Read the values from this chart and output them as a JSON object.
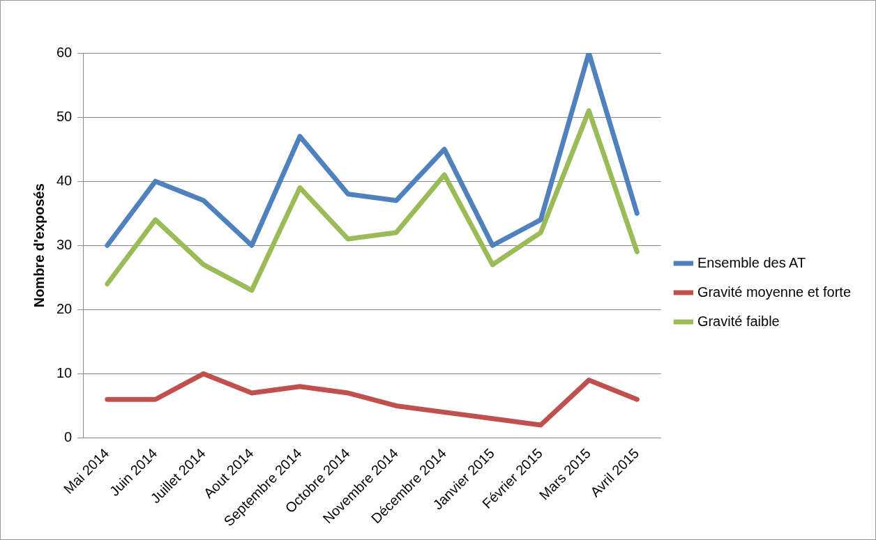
{
  "chart_data": {
    "type": "line",
    "ylabel": "Nombre d'exposés",
    "categories": [
      "Mai 2014",
      "Juin 2014",
      "Juillet 2014",
      "Aout 2014",
      "Septembre 2014",
      "Octobre 2014",
      "Novembre 2014",
      "Décembre 2014",
      "Janvier 2015",
      "Février 2015",
      "Mars 2015",
      "Avril 2015"
    ],
    "series": [
      {
        "name": "Ensemble des AT",
        "color": "#4f81bd",
        "values": [
          30,
          40,
          37,
          30,
          47,
          38,
          37,
          45,
          30,
          34,
          60,
          35
        ]
      },
      {
        "name": "Gravité moyenne et forte",
        "color": "#c0504d",
        "values": [
          6,
          6,
          10,
          7,
          8,
          7,
          5,
          4,
          3,
          2,
          9,
          6
        ]
      },
      {
        "name": "Gravité faible",
        "color": "#9bbb59",
        "values": [
          24,
          34,
          27,
          23,
          39,
          31,
          32,
          41,
          27,
          32,
          51,
          29
        ]
      }
    ],
    "ylim": [
      0,
      60
    ],
    "yticks": [
      0,
      10,
      20,
      30,
      40,
      50,
      60
    ],
    "grid": "y",
    "legend": "right",
    "marker": "none",
    "line_style": "solid"
  }
}
